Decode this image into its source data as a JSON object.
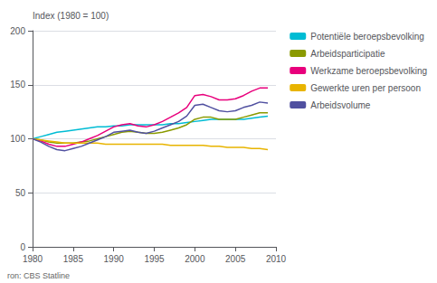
{
  "chart_data": {
    "type": "line",
    "ylabel": "Index (1980 = 100)",
    "annotations": [
      "ron: CBS Statline"
    ],
    "x": [
      1980,
      1981,
      1982,
      1983,
      1984,
      1985,
      1986,
      1987,
      1988,
      1989,
      1990,
      1991,
      1992,
      1993,
      1994,
      1995,
      1996,
      1997,
      1998,
      1999,
      2000,
      2001,
      2002,
      2003,
      2004,
      2005,
      2006,
      2007,
      2008,
      2009
    ],
    "series": [
      {
        "name": "Potentiële beroepsbevolking",
        "color": "#00bcd4",
        "values": [
          100,
          102,
          104,
          106,
          107,
          108,
          109,
          110,
          111,
          111,
          112,
          112,
          113,
          113,
          113,
          113,
          113,
          114,
          114,
          115,
          116,
          117,
          118,
          118,
          118,
          118,
          118,
          119,
          120,
          121
        ]
      },
      {
        "name": "Arbeidsparticipatie",
        "color": "#8a9a00",
        "values": [
          100,
          99,
          97,
          96,
          96,
          96,
          97,
          98,
          100,
          102,
          104,
          106,
          107,
          106,
          105,
          105,
          106,
          108,
          110,
          113,
          118,
          120,
          120,
          118,
          118,
          118,
          120,
          122,
          124,
          124
        ]
      },
      {
        "name": "Werkzame beroepsbevolking",
        "color": "#e8007c",
        "values": [
          100,
          98,
          95,
          93,
          93,
          95,
          97,
          100,
          103,
          107,
          111,
          113,
          114,
          112,
          111,
          113,
          116,
          120,
          124,
          129,
          140,
          141,
          139,
          136,
          136,
          137,
          140,
          144,
          147,
          147
        ]
      },
      {
        "name": "Gewerkte uren per persoon",
        "color": "#e8b400",
        "values": [
          100,
          99,
          98,
          97,
          96,
          96,
          96,
          96,
          96,
          95,
          95,
          95,
          95,
          95,
          95,
          95,
          95,
          94,
          94,
          94,
          94,
          94,
          93,
          93,
          92,
          92,
          92,
          91,
          91,
          90
        ]
      },
      {
        "name": "Arbeidsvolume",
        "color": "#5050a0",
        "values": [
          100,
          97,
          93,
          90,
          89,
          91,
          93,
          96,
          99,
          102,
          106,
          107,
          108,
          106,
          105,
          107,
          110,
          113,
          116,
          121,
          131,
          132,
          129,
          126,
          125,
          126,
          129,
          131,
          134,
          133
        ]
      }
    ],
    "xlim": [
      1980,
      2010
    ],
    "ylim": [
      0,
      200
    ],
    "xticks": [
      1980,
      1985,
      1990,
      1995,
      2000,
      2005,
      2010
    ],
    "yticks": [
      0,
      50,
      100,
      150,
      200
    ],
    "grid": true,
    "legend": "right"
  }
}
